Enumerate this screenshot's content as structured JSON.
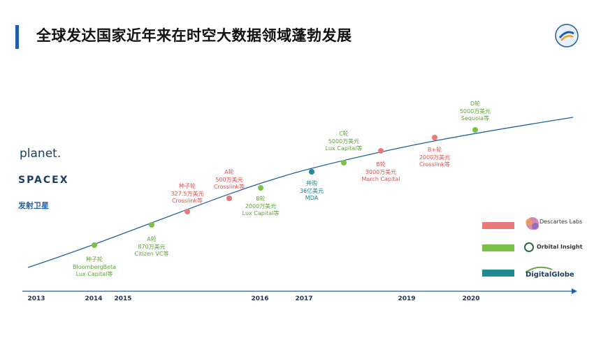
{
  "title": "全球发达国家近年来在时空大数据领域蓬勃发展",
  "left_logos": {
    "planet": "planet.",
    "spacex": "SPACEX",
    "satellite": "发射卫星"
  },
  "colors": {
    "green": "#7cc04a",
    "red": "#e8797b",
    "teal": "#1f8a8f",
    "axis": "#1f5fa7"
  },
  "years": [
    "2013",
    "2014",
    "2015",
    "2016",
    "2017",
    "2019",
    "2020"
  ],
  "events": [
    {
      "color": "green",
      "lines": [
        "种子轮",
        "BloombergBeta",
        "Lux Capital等"
      ]
    },
    {
      "color": "green",
      "lines": [
        "A轮",
        "870万美元",
        "Citizen VC等"
      ]
    },
    {
      "color": "red",
      "lines": [
        "种子轮",
        "327.5万美元",
        "Crosslink等"
      ]
    },
    {
      "color": "red",
      "lines": [
        "A轮",
        "500万美元",
        "Crosslink等"
      ]
    },
    {
      "color": "green",
      "lines": [
        "B轮",
        "2000万美元",
        "Lux Capital等"
      ]
    },
    {
      "color": "teal",
      "lines": [
        "并购",
        "36亿美元",
        "MDA"
      ]
    },
    {
      "color": "green",
      "lines": [
        "C轮",
        "5000万美元",
        "Lux Capital等"
      ]
    },
    {
      "color": "red",
      "lines": [
        "B轮",
        "3000万美元",
        "March Capital"
      ]
    },
    {
      "color": "red",
      "lines": [
        "B+轮",
        "2000万美元",
        "Crosslink等"
      ]
    },
    {
      "color": "green",
      "lines": [
        "D轮",
        "5000万美元",
        "Sequoia等"
      ]
    }
  ],
  "legend": [
    {
      "color": "red",
      "company": "Descartes Labs"
    },
    {
      "color": "green",
      "company": "Orbital Insight"
    },
    {
      "color": "teal",
      "company": "DigitalGlobe"
    }
  ]
}
